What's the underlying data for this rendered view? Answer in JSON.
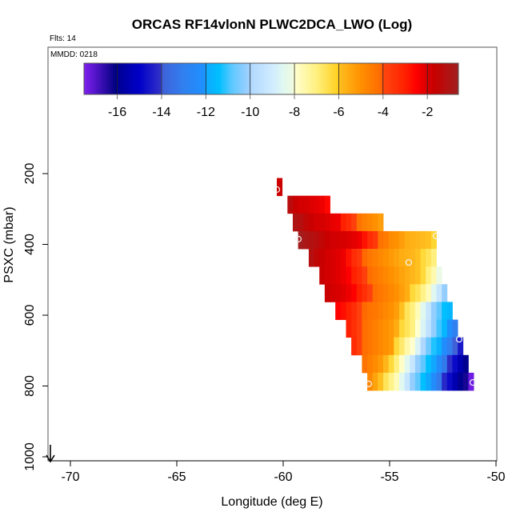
{
  "chart_data": {
    "type": "heatmap",
    "title": "ORCAS RF14vlonN PLWC2DCA_LWO (Log)",
    "subtitle": "Flts: 14",
    "annotation": "MMDD: 0218",
    "xlabel": "Longitude (deg E)",
    "ylabel": "PSXC (mbar)",
    "xlim": [
      -71.05,
      -50
    ],
    "ylim": [
      1013,
      -157
    ],
    "y_inverted": true,
    "xticks": [
      -70,
      -65,
      -60,
      -55,
      -50
    ],
    "xtick_labels": [
      "-70",
      "-65",
      "-60",
      "-55",
      "-50"
    ],
    "yticks": [
      200,
      400,
      600,
      800,
      1000
    ],
    "ytick_labels": [
      "200",
      "400",
      "600",
      "800",
      "1000"
    ],
    "grid": false,
    "cell_lon_width": 0.25,
    "cell_pressure_height": 50,
    "rows": [
      {
        "pressure": 237.5,
        "lon_first": -60.175,
        "values": [
          -1.8
        ]
      },
      {
        "pressure": 287.5,
        "lon_first": -59.675,
        "values": [
          -1.3,
          -1.7,
          -1.9,
          -1.95,
          -2.05,
          -2.15,
          -2.3,
          -2.6
        ]
      },
      {
        "pressure": 337.5,
        "lon_first": -59.425,
        "values": [
          -1.0,
          -1.2,
          -1.5,
          -1.7,
          -1.9,
          -1.97,
          -2.05,
          -2.2,
          -2.3,
          -3.0,
          -3.3,
          -3.8,
          -4.3,
          -4.6,
          -4.8,
          -5.0,
          -5.3
        ]
      },
      {
        "pressure": 387.5,
        "lon_first": -59.175,
        "values": [
          -0.7,
          -0.9,
          -1.1,
          -1.3,
          -1.5,
          -1.7,
          -1.85,
          -1.9,
          -1.95,
          -2.05,
          -2.15,
          -2.3,
          -2.8,
          -3.3,
          -3.6,
          -4.3,
          -4.5,
          -4.9,
          -5.0,
          -5.3,
          -5.6,
          -5.7,
          -5.8,
          -5.9,
          -6.0,
          -6.2
        ]
      },
      {
        "pressure": 437.5,
        "lon_first": -58.675,
        "values": [
          -1.2,
          -1.5,
          -1.7,
          -1.9,
          -2.0,
          -2.1,
          -2.25,
          -2.8,
          -3.3,
          -3.6,
          -4.1,
          -4.4,
          -4.6,
          -4.8,
          -5.0,
          -5.2,
          -5.4,
          -5.6,
          -5.7,
          -5.8,
          -6.0,
          -6.3,
          -6.6,
          -7.0
        ]
      },
      {
        "pressure": 487.5,
        "lon_first": -58.175,
        "values": [
          -1.7,
          -1.9,
          -2.0,
          -2.1,
          -2.25,
          -2.5,
          -3.0,
          -3.3,
          -3.8,
          -4.2,
          -4.4,
          -4.6,
          -4.8,
          -5.0,
          -5.2,
          -5.4,
          -5.6,
          -5.8,
          -6.0,
          -6.3,
          -7.0,
          -7.6,
          -8.2
        ]
      },
      {
        "pressure": 537.5,
        "lon_first": -57.925,
        "values": [
          -1.7,
          -1.9,
          -2.0,
          -2.1,
          -2.3,
          -2.5,
          -3.0,
          -3.4,
          -3.8,
          -4.2,
          -4.4,
          -4.6,
          -4.8,
          -5.0,
          -5.3,
          -5.6,
          -6.3,
          -6.6,
          -7.1,
          -7.7,
          -8.5,
          -9.3,
          -10.2
        ]
      },
      {
        "pressure": 587.5,
        "lon_first": -57.425,
        "values": [
          -2.5,
          -2.7,
          -3.0,
          -3.3,
          -3.8,
          -4.1,
          -4.3,
          -4.4,
          -4.6,
          -4.8,
          -5.0,
          -5.3,
          -6.0,
          -6.6,
          -7.0,
          -7.7,
          -8.5,
          -9.3,
          -10.2,
          -10.8,
          -11.4,
          -11.6
        ]
      },
      {
        "pressure": 637.5,
        "lon_first": -56.925,
        "values": [
          -3.0,
          -3.4,
          -3.8,
          -4.2,
          -4.4,
          -4.6,
          -4.8,
          -5.0,
          -5.2,
          -5.6,
          -6.3,
          -6.6,
          -7.0,
          -8.0,
          -8.7,
          -9.5,
          -10.2,
          -11.0,
          -11.6,
          -12.1,
          -13.0
        ]
      },
      {
        "pressure": 687.5,
        "lon_first": -56.675,
        "values": [
          -3.3,
          -3.8,
          -4.2,
          -4.4,
          -4.6,
          -4.8,
          -5.0,
          -5.2,
          -6.3,
          -6.8,
          -7.5,
          -8.0,
          -8.7,
          -10.0,
          -10.6,
          -11.2,
          -11.8,
          -12.2,
          -13.0,
          -14.0,
          -14.5
        ]
      },
      {
        "pressure": 737.5,
        "lon_first": -56.175,
        "values": [
          -4.3,
          -4.6,
          -4.9,
          -5.2,
          -5.8,
          -6.3,
          -7.0,
          -7.9,
          -8.5,
          -9.3,
          -10.2,
          -10.8,
          -11.4,
          -12.0,
          -12.3,
          -13.2,
          -14.1,
          -14.8,
          -15.5,
          -16.0
        ]
      },
      {
        "pressure": 787.5,
        "lon_first": -55.925,
        "values": [
          -4.8,
          -5.4,
          -6.0,
          -6.6,
          -7.1,
          -7.7,
          -8.5,
          -9.3,
          -10.2,
          -10.8,
          -11.4,
          -12.0,
          -12.3,
          -13.2,
          -14.2,
          -14.8,
          -15.5,
          -16.0,
          -16.3,
          -17.3
        ]
      }
    ],
    "markers": [
      {
        "lon": -60.3,
        "pressure": 245
      },
      {
        "lon": -59.29,
        "pressure": 385
      },
      {
        "lon": -52.82,
        "pressure": 376
      },
      {
        "lon": -54.1,
        "pressure": 451
      },
      {
        "lon": -51.73,
        "pressure": 668
      },
      {
        "lon": -55.98,
        "pressure": 794
      },
      {
        "lon": -51.09,
        "pressure": 790
      }
    ],
    "colorbar": {
      "range": [
        -17.5,
        -0.6
      ],
      "ticks": [
        -16,
        -14,
        -12,
        -10,
        -8,
        -6,
        -4,
        -2
      ],
      "tick_labels": [
        "-16",
        "-14",
        "-12",
        "-10",
        "-8",
        "-6",
        "-4",
        "-2"
      ],
      "placement": "top-inside",
      "stops": [
        [
          -17.5,
          "#8020f0"
        ],
        [
          -16.05,
          "#000080"
        ],
        [
          -16,
          "#000090"
        ],
        [
          -15.5,
          "#0000b0"
        ],
        [
          -15,
          "#0000c8"
        ],
        [
          -14.05,
          "#3030c8"
        ],
        [
          -14,
          "#4060d8"
        ],
        [
          -13,
          "#3080f0"
        ],
        [
          -12.05,
          "#1e90ff"
        ],
        [
          -12,
          "#10a8ff"
        ],
        [
          -11.4,
          "#00bfff"
        ],
        [
          -10.8,
          "#60c8ff"
        ],
        [
          -10.05,
          "#a0d0ff"
        ],
        [
          -10,
          "#b0d8ff"
        ],
        [
          -9,
          "#d0ecff"
        ],
        [
          -8.5,
          "#e0f8f0"
        ],
        [
          -8.05,
          "#f0fae0"
        ],
        [
          -8,
          "#ffffd0"
        ],
        [
          -7,
          "#fff080"
        ],
        [
          -6.05,
          "#ffd020"
        ],
        [
          -6,
          "#ffc020"
        ],
        [
          -5,
          "#ff9000"
        ],
        [
          -4.05,
          "#ff6800"
        ],
        [
          -4,
          "#ff4810"
        ],
        [
          -3,
          "#ff2000"
        ],
        [
          -2.5,
          "#ff0000"
        ],
        [
          -2,
          "#d80000"
        ],
        [
          -1.7,
          "#c80000"
        ],
        [
          -0.6,
          "#a02020"
        ]
      ]
    },
    "bottom_arrow": "down-arrow"
  }
}
